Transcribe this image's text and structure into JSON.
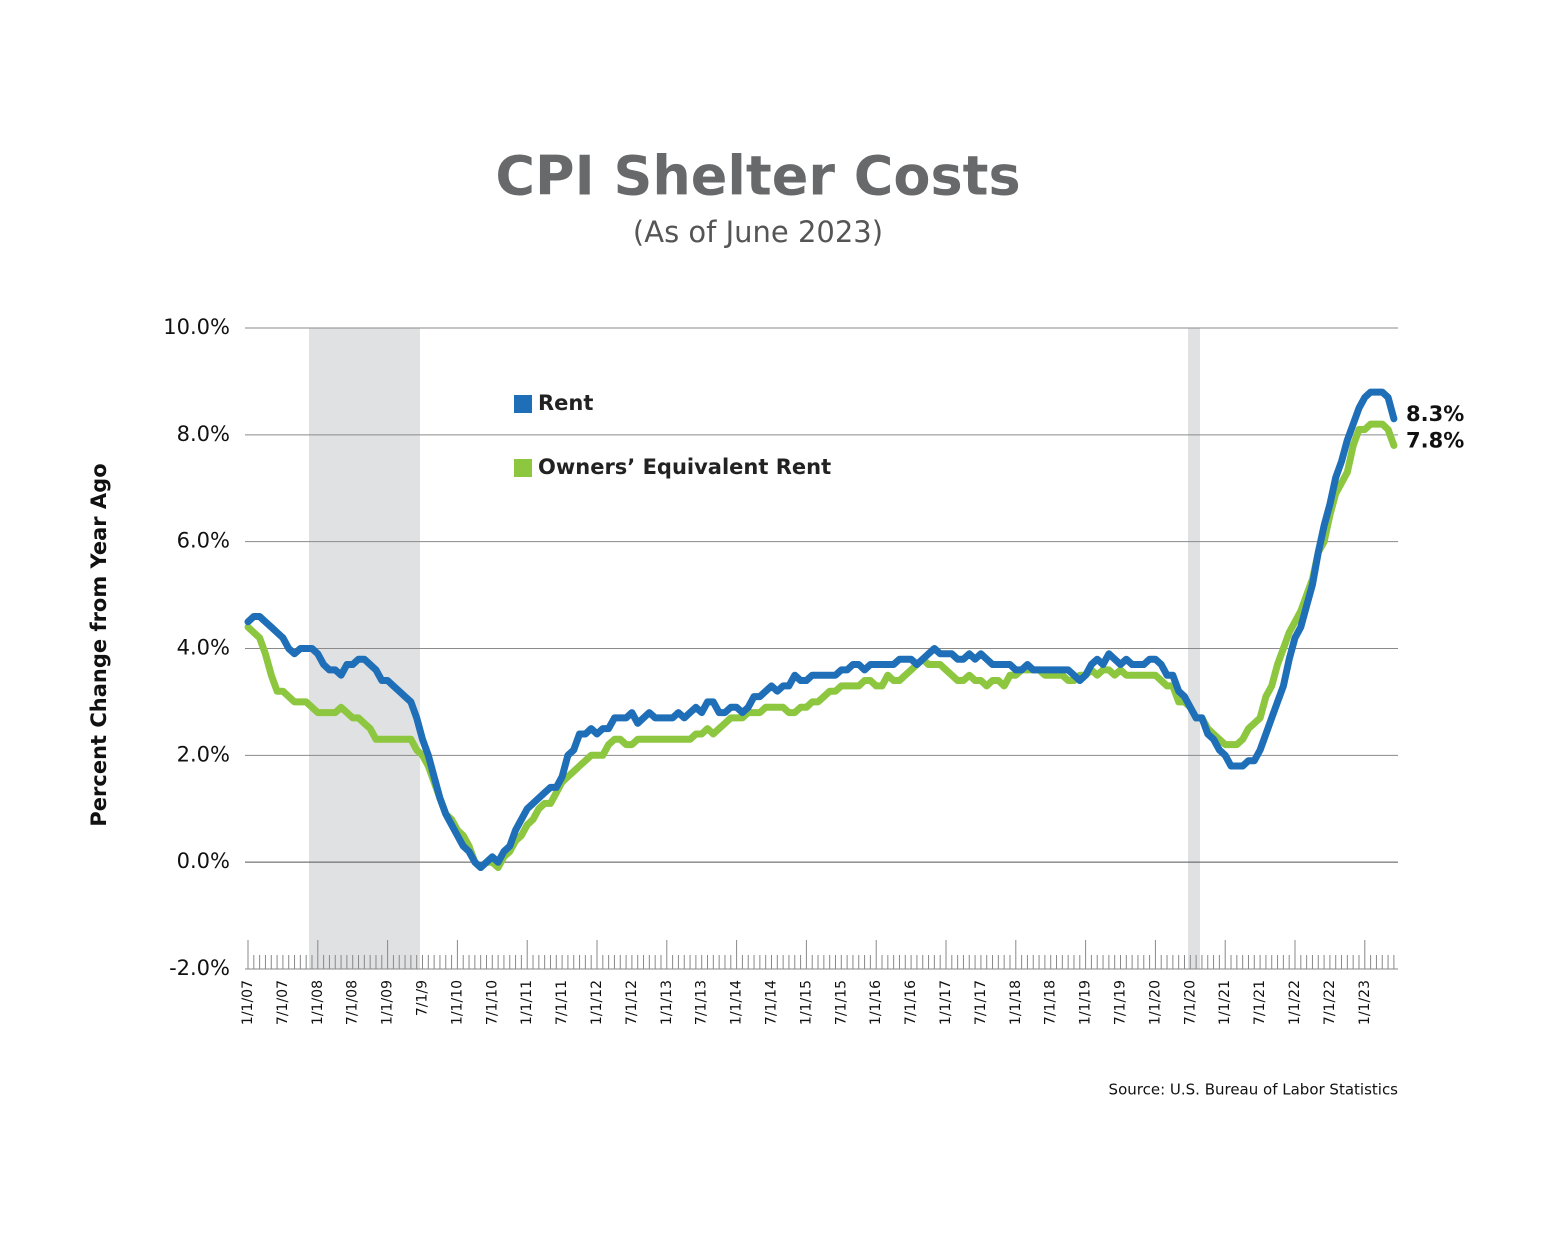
{
  "chart_data": {
    "type": "line",
    "title": "CPI Shelter Costs",
    "subtitle": "(As of June 2023)",
    "y_label": "Percent Change from Year Ago",
    "source": "Source: U.S. Bureau of Labor Statistics",
    "ylim": [
      -2,
      10
    ],
    "yticks": [
      {
        "value": -2,
        "label": "-2.0%"
      },
      {
        "value": 0,
        "label": "0.0%"
      },
      {
        "value": 2,
        "label": "2.0%"
      },
      {
        "value": 4,
        "label": "4.0%"
      },
      {
        "value": 6,
        "label": "6.0%"
      },
      {
        "value": 8,
        "label": "8.0%"
      },
      {
        "value": 10,
        "label": "10.0%"
      }
    ],
    "grid": true,
    "categories": [
      "1/1/07",
      null,
      null,
      null,
      null,
      null,
      "7/1/07",
      null,
      null,
      null,
      null,
      null,
      "1/1/08",
      null,
      null,
      null,
      null,
      null,
      "7/1/08",
      null,
      null,
      null,
      null,
      null,
      "1/1/09",
      null,
      null,
      null,
      null,
      null,
      "7/1/9",
      null,
      null,
      null,
      null,
      null,
      "1/1/10",
      null,
      null,
      null,
      null,
      null,
      "7/1/10",
      null,
      null,
      null,
      null,
      null,
      "1/1/11",
      null,
      null,
      null,
      null,
      null,
      "7/1/11",
      null,
      null,
      null,
      null,
      null,
      "1/1/12",
      null,
      null,
      null,
      null,
      null,
      "7/1/12",
      null,
      null,
      null,
      null,
      null,
      "1/1/13",
      null,
      null,
      null,
      null,
      null,
      "7/1/13",
      null,
      null,
      null,
      null,
      null,
      "1/1/14",
      null,
      null,
      null,
      null,
      null,
      "7/1/14",
      null,
      null,
      null,
      null,
      null,
      "1/1/15",
      null,
      null,
      null,
      null,
      null,
      "7/1/15",
      null,
      null,
      null,
      null,
      null,
      "1/1/16",
      null,
      null,
      null,
      null,
      null,
      "7/1/16",
      null,
      null,
      null,
      null,
      null,
      "1/1/17",
      null,
      null,
      null,
      null,
      null,
      "7/1/17",
      null,
      null,
      null,
      null,
      null,
      "1/1/18",
      null,
      null,
      null,
      null,
      null,
      "7/1/18",
      null,
      null,
      null,
      null,
      null,
      "1/1/19",
      null,
      null,
      null,
      null,
      null,
      "7/1/19",
      null,
      null,
      null,
      null,
      null,
      "1/1/20",
      null,
      null,
      null,
      null,
      null,
      "7/1/20",
      null,
      null,
      null,
      null,
      null,
      "1/1/21",
      null,
      null,
      null,
      null,
      null,
      "7/1/21",
      null,
      null,
      null,
      null,
      null,
      "1/1/22",
      null,
      null,
      null,
      null,
      null,
      "7/1/22",
      null,
      null,
      null,
      null,
      null,
      "1/1/23",
      null,
      null,
      null,
      null,
      null
    ],
    "series": [
      {
        "name": "Rent",
        "color": "#1f6fb8",
        "end_label": "8.3%",
        "values": [
          4.5,
          4.6,
          4.6,
          4.5,
          4.4,
          4.3,
          4.2,
          4.0,
          3.9,
          4.0,
          4.0,
          4.0,
          3.9,
          3.7,
          3.6,
          3.6,
          3.5,
          3.7,
          3.7,
          3.8,
          3.8,
          3.7,
          3.6,
          3.4,
          3.4,
          3.3,
          3.2,
          3.1,
          3.0,
          2.7,
          2.3,
          2.0,
          1.6,
          1.2,
          0.9,
          0.7,
          0.5,
          0.3,
          0.2,
          0.0,
          -0.1,
          0.0,
          0.1,
          0.0,
          0.2,
          0.3,
          0.6,
          0.8,
          1.0,
          1.1,
          1.2,
          1.3,
          1.4,
          1.4,
          1.6,
          2.0,
          2.1,
          2.4,
          2.4,
          2.5,
          2.4,
          2.5,
          2.5,
          2.7,
          2.7,
          2.7,
          2.8,
          2.6,
          2.7,
          2.8,
          2.7,
          2.7,
          2.7,
          2.7,
          2.8,
          2.7,
          2.8,
          2.9,
          2.8,
          3.0,
          3.0,
          2.8,
          2.8,
          2.9,
          2.9,
          2.8,
          2.9,
          3.1,
          3.1,
          3.2,
          3.3,
          3.2,
          3.3,
          3.3,
          3.5,
          3.4,
          3.4,
          3.5,
          3.5,
          3.5,
          3.5,
          3.5,
          3.6,
          3.6,
          3.7,
          3.7,
          3.6,
          3.7,
          3.7,
          3.7,
          3.7,
          3.7,
          3.8,
          3.8,
          3.8,
          3.7,
          3.8,
          3.9,
          4.0,
          3.9,
          3.9,
          3.9,
          3.8,
          3.8,
          3.9,
          3.8,
          3.9,
          3.8,
          3.7,
          3.7,
          3.7,
          3.7,
          3.6,
          3.6,
          3.7,
          3.6,
          3.6,
          3.6,
          3.6,
          3.6,
          3.6,
          3.6,
          3.5,
          3.4,
          3.5,
          3.7,
          3.8,
          3.7,
          3.9,
          3.8,
          3.7,
          3.8,
          3.7,
          3.7,
          3.7,
          3.8,
          3.8,
          3.7,
          3.5,
          3.5,
          3.2,
          3.1,
          2.9,
          2.7,
          2.7,
          2.4,
          2.3,
          2.1,
          2.0,
          1.8,
          1.8,
          1.8,
          1.9,
          1.9,
          2.1,
          2.4,
          2.7,
          3.0,
          3.3,
          3.8,
          4.2,
          4.4,
          4.8,
          5.2,
          5.8,
          6.3,
          6.7,
          7.2,
          7.5,
          7.9,
          8.2,
          8.5,
          8.7,
          8.8,
          8.8,
          8.8,
          8.7,
          8.3
        ]
      },
      {
        "name": "Owners’ Equivalent Rent",
        "color": "#8dc63f",
        "end_label": "7.8%",
        "values": [
          4.4,
          4.3,
          4.2,
          3.9,
          3.5,
          3.2,
          3.2,
          3.1,
          3.0,
          3.0,
          3.0,
          2.9,
          2.8,
          2.8,
          2.8,
          2.8,
          2.9,
          2.8,
          2.7,
          2.7,
          2.6,
          2.5,
          2.3,
          2.3,
          2.3,
          2.3,
          2.3,
          2.3,
          2.3,
          2.1,
          2.0,
          1.8,
          1.5,
          1.2,
          0.9,
          0.8,
          0.6,
          0.5,
          0.3,
          0.0,
          -0.1,
          0.0,
          0.0,
          -0.1,
          0.1,
          0.2,
          0.4,
          0.5,
          0.7,
          0.8,
          1.0,
          1.1,
          1.1,
          1.3,
          1.5,
          1.6,
          1.7,
          1.8,
          1.9,
          2.0,
          2.0,
          2.0,
          2.2,
          2.3,
          2.3,
          2.2,
          2.2,
          2.3,
          2.3,
          2.3,
          2.3,
          2.3,
          2.3,
          2.3,
          2.3,
          2.3,
          2.3,
          2.4,
          2.4,
          2.5,
          2.4,
          2.5,
          2.6,
          2.7,
          2.7,
          2.7,
          2.8,
          2.8,
          2.8,
          2.9,
          2.9,
          2.9,
          2.9,
          2.8,
          2.8,
          2.9,
          2.9,
          3.0,
          3.0,
          3.1,
          3.2,
          3.2,
          3.3,
          3.3,
          3.3,
          3.3,
          3.4,
          3.4,
          3.3,
          3.3,
          3.5,
          3.4,
          3.4,
          3.5,
          3.6,
          3.7,
          3.8,
          3.7,
          3.7,
          3.7,
          3.6,
          3.5,
          3.4,
          3.4,
          3.5,
          3.4,
          3.4,
          3.3,
          3.4,
          3.4,
          3.3,
          3.5,
          3.5,
          3.6,
          3.6,
          3.6,
          3.6,
          3.5,
          3.5,
          3.5,
          3.5,
          3.4,
          3.4,
          3.5,
          3.5,
          3.6,
          3.5,
          3.6,
          3.6,
          3.5,
          3.6,
          3.5,
          3.5,
          3.5,
          3.5,
          3.5,
          3.5,
          3.4,
          3.3,
          3.3,
          3.0,
          3.0,
          2.9,
          2.7,
          2.7,
          2.5,
          2.4,
          2.3,
          2.2,
          2.2,
          2.2,
          2.3,
          2.5,
          2.6,
          2.7,
          3.1,
          3.3,
          3.7,
          4.0,
          4.3,
          4.5,
          4.7,
          5.0,
          5.3,
          5.8,
          6.0,
          6.5,
          6.9,
          7.1,
          7.3,
          7.8,
          8.1,
          8.1,
          8.2,
          8.2,
          8.2,
          8.1,
          7.8
        ]
      }
    ]
  }
}
